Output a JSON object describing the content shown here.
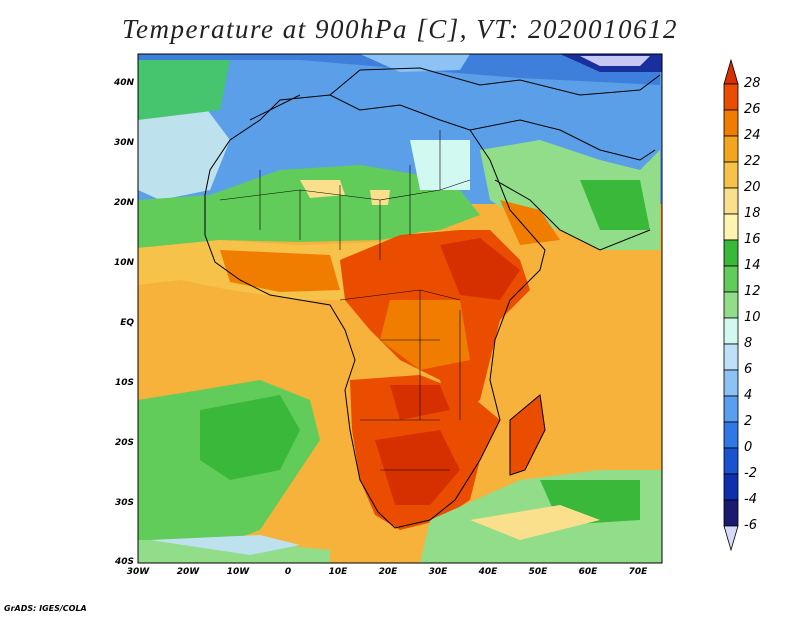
{
  "title": "Temperature at 900hPa [C], VT: 2020010612",
  "footer": "GrADS: IGES/COLA",
  "map": {
    "lon_labels": [
      "30W",
      "20W",
      "10W",
      "0",
      "10E",
      "20E",
      "30E",
      "40E",
      "50E",
      "60E",
      "70E"
    ],
    "lat_labels": [
      "40N",
      "30N",
      "20N",
      "10N",
      "EQ",
      "10S",
      "20S",
      "30S",
      "40S"
    ],
    "lon_range": [
      -30,
      75
    ],
    "lat_range": [
      -40,
      45
    ]
  },
  "colorbar": {
    "labels": [
      "28",
      "26",
      "24",
      "22",
      "20",
      "18",
      "16",
      "14",
      "12",
      "10",
      "8",
      "6",
      "4",
      "2",
      "0",
      "-2",
      "-4",
      "-6"
    ],
    "colors": [
      "#d73000",
      "#ea4d00",
      "#f07d00",
      "#f4a520",
      "#f7c24a",
      "#fae08c",
      "#fff4b0",
      "#3ab83a",
      "#62cc5a",
      "#92dd8a",
      "#d2f8f2",
      "#bee0f8",
      "#8cc2f4",
      "#5a9ef0",
      "#2f78e6",
      "#1a52cf",
      "#0f2fae",
      "#1a1a6e",
      "#d8d8f8"
    ]
  }
}
